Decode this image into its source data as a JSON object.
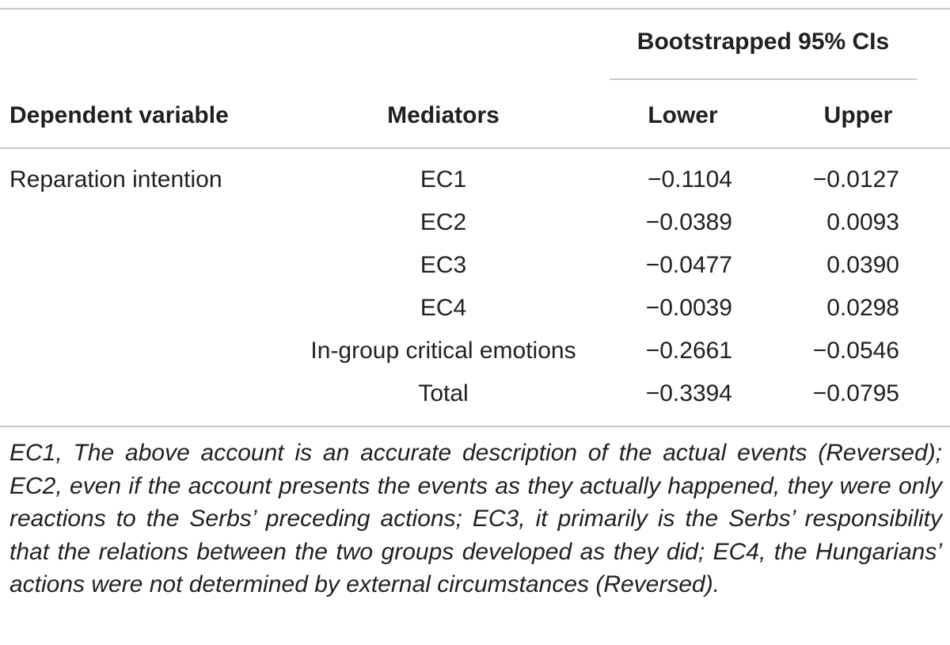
{
  "table": {
    "group_header": "Bootstrapped 95% CIs",
    "columns": {
      "dependent_variable": "Dependent variable",
      "mediators": "Mediators",
      "lower": "Lower",
      "upper": "Upper"
    },
    "dependent_variable_value": "Reparation intention",
    "rows": [
      {
        "mediator": "EC1",
        "lower": "−0.1104",
        "upper": "−0.0127"
      },
      {
        "mediator": "EC2",
        "lower": "−0.0389",
        "upper": "0.0093"
      },
      {
        "mediator": "EC3",
        "lower": "−0.0477",
        "upper": "0.0390"
      },
      {
        "mediator": "EC4",
        "lower": "−0.0039",
        "upper": "0.0298"
      },
      {
        "mediator": "In-group critical emotions",
        "lower": "−0.2661",
        "upper": "−0.0546"
      },
      {
        "mediator": "Total",
        "lower": "−0.3394",
        "upper": "−0.0795"
      }
    ]
  },
  "footnote": "EC1, The above account is an accurate description of the actual events (Reversed); EC2, even if the account presents the events as they actually happened, they were only reactions to the Serbs’ preceding actions; EC3, it primarily is the Serbs’ responsibility that the relations between the two groups developed as they did; EC4, the Hungarians’ actions were not determined by external circumstances (Reversed)."
}
